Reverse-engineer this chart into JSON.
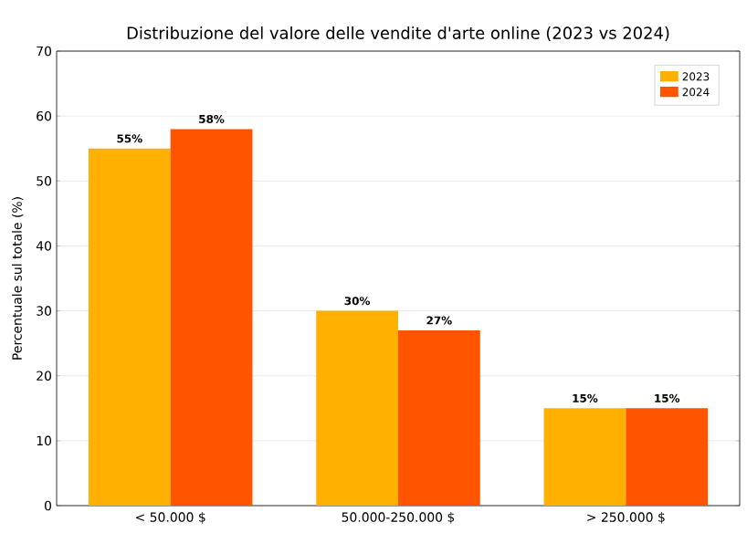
{
  "chart_data": {
    "type": "bar",
    "title": "Distribuzione del valore delle vendite d'arte online (2023 vs 2024)",
    "ylabel": "Percentuale sul totale (%)",
    "categories": [
      "< 50.000 $",
      "50.000-250.000 $",
      "> 250.000 $"
    ],
    "series": [
      {
        "name": "2023",
        "color": "#ffb000",
        "values": [
          55,
          30,
          15
        ],
        "value_labels": [
          "55%",
          "30%",
          "15%"
        ]
      },
      {
        "name": "2024",
        "color": "#ff5500",
        "values": [
          58,
          27,
          15
        ],
        "value_labels": [
          "58%",
          "27%",
          "15%"
        ]
      }
    ],
    "ylim": [
      0,
      70
    ],
    "yticks": [
      0,
      10,
      20,
      30,
      40,
      50,
      60,
      70
    ],
    "grid": "y",
    "legend": "top right"
  }
}
